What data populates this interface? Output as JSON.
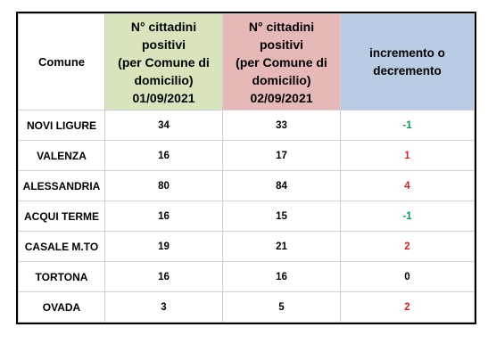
{
  "header": {
    "comune": "Comune",
    "date1": [
      "N° cittadini",
      "positivi",
      "(per Comune di",
      "domicilio)",
      "01/09/2021"
    ],
    "date2": [
      "N° cittadini",
      "positivi",
      "(per Comune di",
      "domicilio)",
      "02/09/2021"
    ],
    "change": [
      "incremento o",
      "decremento"
    ]
  },
  "rows": [
    {
      "comune": "NOVI LIGURE",
      "d1": "34",
      "d2": "33",
      "change": "-1"
    },
    {
      "comune": "VALENZA",
      "d1": "16",
      "d2": "17",
      "change": "1"
    },
    {
      "comune": "ALESSANDRIA",
      "d1": "80",
      "d2": "84",
      "change": "4"
    },
    {
      "comune": "ACQUI TERME",
      "d1": "16",
      "d2": "15",
      "change": "-1"
    },
    {
      "comune": "CASALE M.TO",
      "d1": "19",
      "d2": "21",
      "change": "2"
    },
    {
      "comune": "TORTONA",
      "d1": "16",
      "d2": "16",
      "change": "0"
    },
    {
      "comune": "OVADA",
      "d1": "3",
      "d2": "5",
      "change": "2"
    }
  ],
  "colors": {
    "date1_header": "#d8e4bc",
    "date2_header": "#e6b8b7",
    "change_header": "#b8cce4",
    "decrease": "#00a050",
    "increase": "#e02020"
  }
}
